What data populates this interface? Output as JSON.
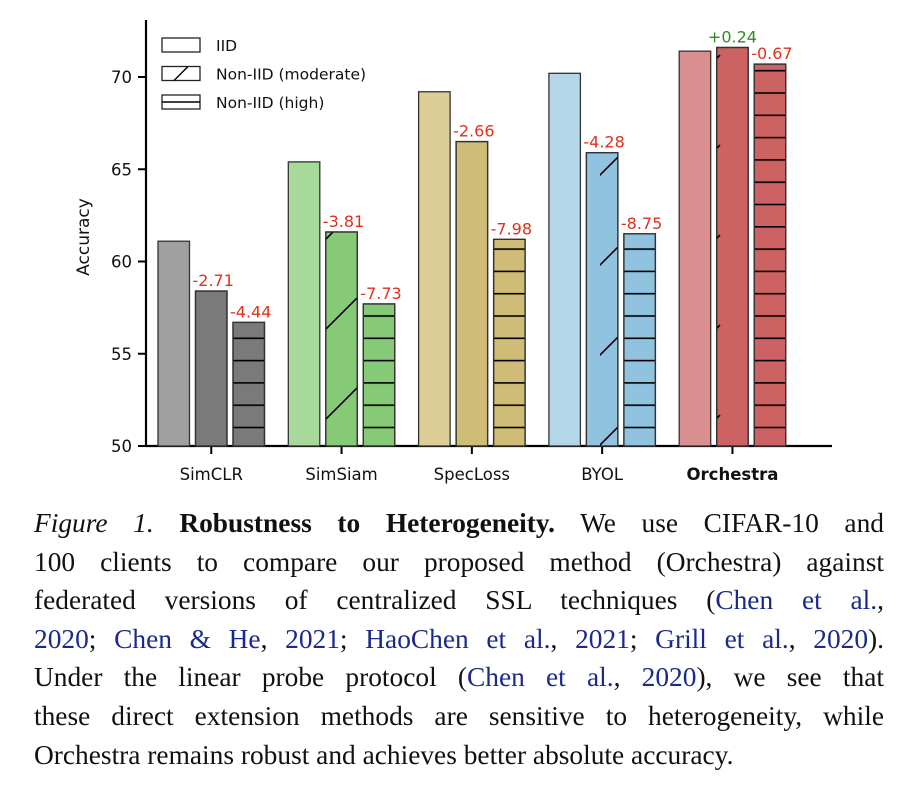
{
  "chart_data": {
    "type": "bar",
    "title": "",
    "xlabel": "",
    "ylabel": "Accuracy",
    "ylim": [
      50,
      73
    ],
    "yticks": [
      "50",
      "55",
      "60",
      "65",
      "70"
    ],
    "categories": [
      "SimCLR",
      "SimSiam",
      "SpecLoss",
      "BYOL",
      "Orchestra"
    ],
    "highlight_category": "Orchestra",
    "series": [
      {
        "name": "IID",
        "pattern": "none",
        "values": [
          61.1,
          65.4,
          69.2,
          70.2,
          71.4
        ]
      },
      {
        "name": "Non-IID (moderate)",
        "pattern": "diagonal",
        "values": [
          58.4,
          61.6,
          66.5,
          65.9,
          71.6
        ]
      },
      {
        "name": "Non-IID (high)",
        "pattern": "horizontal",
        "values": [
          56.7,
          57.7,
          61.2,
          61.5,
          70.7
        ]
      }
    ],
    "annotations": {
      "moderate": [
        "-2.71",
        "-3.81",
        "-2.66",
        "-4.28",
        "+0.24"
      ],
      "high": [
        "-4.44",
        "-7.73",
        "-7.98",
        "-8.75",
        "-0.67"
      ]
    },
    "colors": {
      "SimCLR": [
        "#a0a0a0",
        "#7a7a7a",
        "#7a7a7a"
      ],
      "SimSiam": [
        "#a6d99a",
        "#86c977",
        "#86c977"
      ],
      "SpecLoss": [
        "#ddce97",
        "#cfbc76",
        "#cfbc76"
      ],
      "BYOL": [
        "#b3d7e8",
        "#90c3e0",
        "#90c3e0"
      ],
      "Orchestra": [
        "#d98f8f",
        "#cd6262",
        "#cd6262"
      ]
    },
    "negative_color": "#e0301e",
    "positive_color": "#2f8a22",
    "legend_position": "top-left"
  },
  "caption": {
    "line1": {
      "label": "Figure 1.",
      "title": "Robustness to Heterogeneity.",
      "text": " We use CIFAR-10 and"
    },
    "line2": "100 clients to compare our proposed method (Orchestra) against",
    "line3": {
      "text": "federated versions of centralized SSL techniques (",
      "cite1": "Chen et al.",
      "tail": ","
    },
    "line4": {
      "cite1_year": "2020",
      "sep1": "; ",
      "cite2": "Chen & He",
      "sep2": ", ",
      "cite2_year": "2021",
      "sep3": "; ",
      "cite3": "HaoChen et al.",
      "sep4": ", ",
      "cite3_year": "2021",
      "sep5": "; ",
      "cite4": "Grill et al.",
      "sep6": ", ",
      "cite4_year": "2020",
      "tail": ")."
    },
    "line5": {
      "text": "Under the linear probe protocol (",
      "cite": "Chen et al.",
      "sep": ", ",
      "year": "2020",
      "tail": "), we see that"
    },
    "line6": "these direct extension methods are sensitive to heterogeneity, while",
    "line7": "Orchestra remains robust and achieves better absolute accuracy."
  }
}
